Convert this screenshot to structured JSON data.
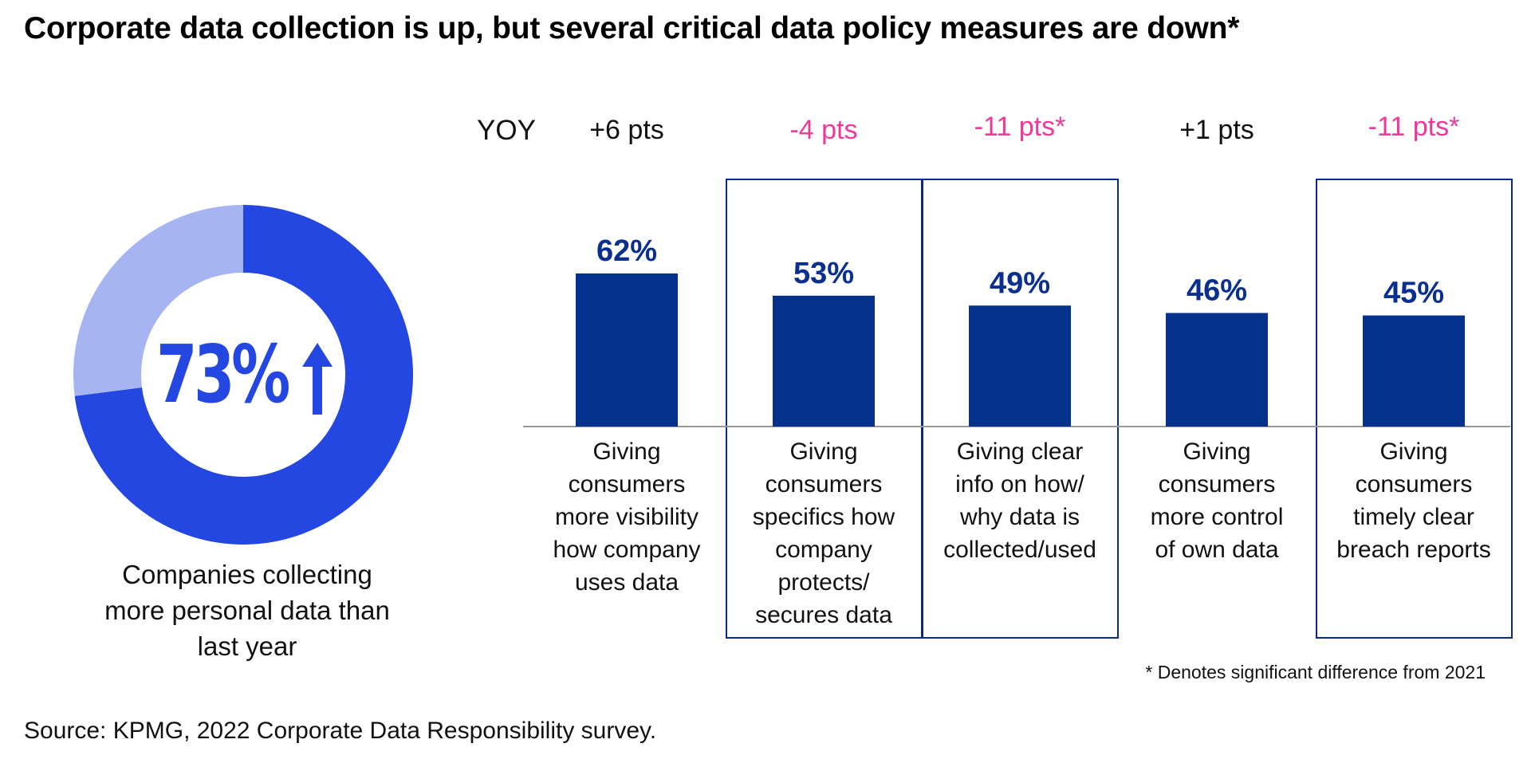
{
  "title": "Corporate data collection is up, but several critical data policy measures are down*",
  "colors": {
    "donut_main": "#2347e0",
    "donut_rest": "#a6b4f2",
    "bar": "#06318c",
    "bar_label": "#0a2f8f",
    "yoy_positive": "#111111",
    "yoy_negative": "#ec3a9a",
    "box_border": "#0a2a88"
  },
  "donut": {
    "value_text": "73%",
    "arrow_icon": "up-arrow-icon",
    "caption": [
      "Companies collecting",
      "more personal data than",
      "last year"
    ]
  },
  "yoy_label": "YOY",
  "footnote": "* Denotes significant difference from 2021",
  "source": "Source: KPMG, 2022 Corporate Data Responsibility survey.",
  "chart_data": [
    {
      "type": "pie",
      "categories": [
        "Companies collecting more personal data than last year",
        "Other"
      ],
      "values": [
        73,
        27
      ]
    },
    {
      "type": "bar",
      "categories": [
        "Giving consumers more visibility how company uses data",
        "Giving consumers specifics how company protects/ secures data",
        "Giving clear info on how/ why data is collected/used",
        "Giving consumers more control of own data",
        "Giving consumers timely clear breach reports"
      ],
      "category_lines": [
        [
          "Giving",
          "consumers",
          "more visibility",
          "how company",
          "uses data"
        ],
        [
          "Giving",
          "consumers",
          "specifics how",
          "company",
          "protects/",
          "secures data"
        ],
        [
          "Giving clear",
          "info on how/",
          "why data is",
          "collected/used"
        ],
        [
          "Giving",
          "consumers",
          "more control",
          "of own data"
        ],
        [
          "Giving",
          "consumers",
          "timely clear",
          "breach reports"
        ]
      ],
      "values": [
        62,
        53,
        49,
        46,
        45
      ],
      "value_labels": [
        "62%",
        "53%",
        "49%",
        "46%",
        "45%"
      ],
      "yoy_labels": [
        "+6 pts",
        "-4 pts",
        "-11 pts*",
        "+1 pts",
        "-11 pts*"
      ],
      "yoy_direction": [
        "up",
        "down",
        "down",
        "up",
        "down"
      ],
      "highlighted": [
        false,
        true,
        true,
        false,
        true
      ],
      "ylim": [
        0,
        62
      ]
    }
  ]
}
